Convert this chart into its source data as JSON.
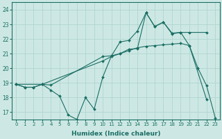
{
  "bg_color": "#cde8e4",
  "line_color": "#1a6e64",
  "grid_color": "#b0d4d0",
  "xlabel": "Humidex (Indice chaleur)",
  "ylim": [
    16.5,
    24.5
  ],
  "xlim": [
    -0.5,
    23.5
  ],
  "yticks": [
    17,
    18,
    19,
    20,
    21,
    22,
    23,
    24
  ],
  "xticks": [
    0,
    1,
    2,
    3,
    4,
    5,
    6,
    7,
    8,
    9,
    10,
    11,
    12,
    13,
    14,
    15,
    16,
    17,
    18,
    19,
    20,
    21,
    22,
    23
  ],
  "line1_x": [
    0,
    1,
    2,
    3,
    4,
    5,
    6,
    7,
    8,
    9,
    10,
    11,
    12,
    13,
    14,
    15,
    16,
    17,
    18,
    19,
    20,
    22
  ],
  "line1_y": [
    18.9,
    18.7,
    18.7,
    18.9,
    18.5,
    18.1,
    16.8,
    16.5,
    18.0,
    17.2,
    19.4,
    20.85,
    21.0,
    21.3,
    21.35,
    23.8,
    22.85,
    23.15,
    22.35,
    22.45,
    21.55,
    17.85
  ],
  "line2_x": [
    0,
    3,
    10,
    11,
    12,
    13,
    14,
    15,
    16,
    17,
    18,
    19,
    20,
    21,
    22,
    23
  ],
  "line2_y": [
    18.9,
    18.9,
    20.5,
    20.8,
    21.0,
    21.2,
    21.4,
    21.5,
    21.55,
    21.6,
    21.65,
    21.7,
    21.55,
    20.0,
    18.8,
    16.6
  ],
  "line3_x": [
    0,
    1,
    2,
    3,
    4,
    10,
    11,
    12,
    13,
    14,
    15,
    16,
    17,
    18,
    19,
    20,
    22
  ],
  "line3_y": [
    18.9,
    18.7,
    18.7,
    18.9,
    18.85,
    20.8,
    20.85,
    21.8,
    21.9,
    22.55,
    23.8,
    22.85,
    23.15,
    22.4,
    22.45,
    22.45,
    22.45
  ],
  "tick_fontsize": 5,
  "xlabel_fontsize": 6.5
}
